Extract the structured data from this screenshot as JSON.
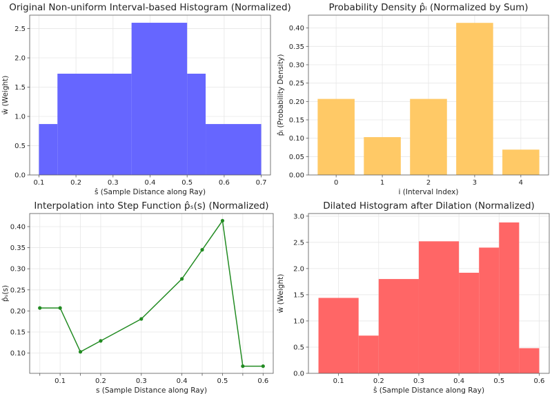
{
  "chart_data": [
    {
      "type": "bar",
      "title": "Original Non-uniform Interval-based Histogram (Normalized)",
      "xlabel": "ŝ (Sample Distance along Ray)",
      "ylabel": "ŵ (Weight)",
      "xlim": [
        0.075,
        0.725
      ],
      "ylim": [
        0,
        2.73
      ],
      "xticks": [
        0.1,
        0.2,
        0.3,
        0.4,
        0.5,
        0.6,
        0.7
      ],
      "yticks": [
        0.0,
        0.5,
        1.0,
        1.5,
        2.0,
        2.5
      ],
      "tick_decimals": [
        1,
        1
      ],
      "grid": true,
      "color": "#6666ff",
      "bins": [
        {
          "x0": 0.1,
          "x1": 0.15,
          "value": 0.87
        },
        {
          "x0": 0.15,
          "x1": 0.35,
          "value": 1.73
        },
        {
          "x0": 0.35,
          "x1": 0.5,
          "value": 2.6
        },
        {
          "x0": 0.5,
          "x1": 0.55,
          "value": 1.73
        },
        {
          "x0": 0.55,
          "x1": 0.7,
          "value": 0.87
        }
      ]
    },
    {
      "type": "bar",
      "title": "Probability Density p̂ᵢ (Normalized by Sum)",
      "xlabel": "i (Interval Index)",
      "ylabel": "p̂ᵢ (Probability Density)",
      "categories": [
        "0",
        "1",
        "2",
        "3",
        "4"
      ],
      "values": [
        0.207,
        0.103,
        0.207,
        0.414,
        0.069
      ],
      "xlim": [
        -0.6,
        4.6
      ],
      "ylim": [
        0,
        0.435
      ],
      "yticks": [
        0.0,
        0.05,
        0.1,
        0.15,
        0.2,
        0.25,
        0.3,
        0.35,
        0.4
      ],
      "tick_decimals": [
        0,
        2
      ],
      "grid": true,
      "color": "#ffc966"
    },
    {
      "type": "line",
      "title": "Interpolation into Step Function p̂ₛ(s) (Normalized)",
      "xlabel": "s (Sample Distance along Ray)",
      "ylabel": "p̂ₛ(s)",
      "x": [
        0.05,
        0.1,
        0.15,
        0.2,
        0.3,
        0.4,
        0.45,
        0.5,
        0.55,
        0.6
      ],
      "y": [
        0.207,
        0.207,
        0.103,
        0.129,
        0.181,
        0.276,
        0.345,
        0.414,
        0.069,
        0.069
      ],
      "xlim": [
        0.025,
        0.625
      ],
      "ylim": [
        0.052,
        0.431
      ],
      "xticks": [
        0.05,
        0.1,
        0.15,
        0.2,
        0.3,
        0.4,
        0.45,
        0.5,
        0.55,
        0.6
      ],
      "xtick_labels": [
        "",
        "0.1",
        "",
        "0.2",
        "0.3",
        "0.4",
        "",
        "0.5",
        "",
        "0.6"
      ],
      "yticks": [
        0.1,
        0.15,
        0.2,
        0.25,
        0.3,
        0.35,
        0.4
      ],
      "tick_decimals": [
        1,
        2
      ],
      "grid": true,
      "color": "#228b22"
    },
    {
      "type": "bar",
      "title": "Dilated Histogram after Dilation (Normalized)",
      "xlabel": "ŝ (Sample Distance along Ray)",
      "ylabel": "ŵ (Weight)",
      "xlim": [
        0.025,
        0.625
      ],
      "ylim": [
        0,
        3.05
      ],
      "xticks": [
        0.1,
        0.2,
        0.3,
        0.4,
        0.5,
        0.6
      ],
      "yticks": [
        0.0,
        0.5,
        1.0,
        1.5,
        2.0,
        2.5,
        3.0
      ],
      "tick_decimals": [
        1,
        1
      ],
      "grid": true,
      "color": "#ff6666",
      "bins": [
        {
          "x0": 0.05,
          "x1": 0.15,
          "value": 1.44
        },
        {
          "x0": 0.15,
          "x1": 0.2,
          "value": 0.72
        },
        {
          "x0": 0.2,
          "x1": 0.3,
          "value": 1.8
        },
        {
          "x0": 0.3,
          "x1": 0.4,
          "value": 2.52
        },
        {
          "x0": 0.4,
          "x1": 0.45,
          "value": 1.92
        },
        {
          "x0": 0.45,
          "x1": 0.5,
          "value": 2.4
        },
        {
          "x0": 0.5,
          "x1": 0.55,
          "value": 2.88
        },
        {
          "x0": 0.55,
          "x1": 0.6,
          "value": 0.48
        }
      ]
    }
  ]
}
